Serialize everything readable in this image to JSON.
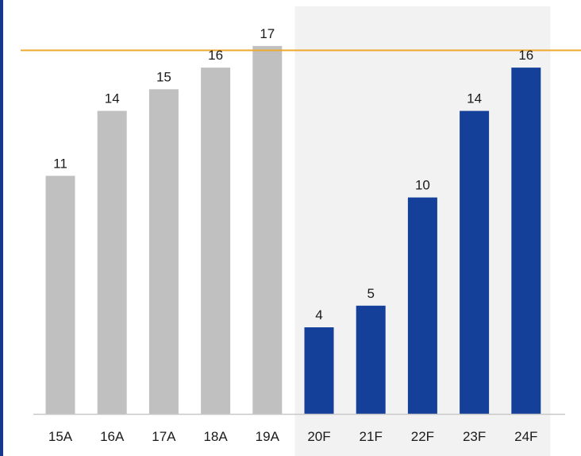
{
  "chart_data": {
    "type": "bar",
    "categories": [
      "15A",
      "16A",
      "17A",
      "18A",
      "19A",
      "20F",
      "21F",
      "22F",
      "23F",
      "24F"
    ],
    "values": [
      11,
      14,
      15,
      16,
      17,
      4,
      5,
      10,
      14,
      16
    ],
    "ylim": [
      0,
      18.5
    ],
    "reference_line": {
      "value": 16.8,
      "color": "#f0a92f"
    },
    "highlight_region": {
      "categories": [
        "20F",
        "21F",
        "22F",
        "23F",
        "24F"
      ],
      "color": "#f2f2f2"
    },
    "colors": {
      "actual": "#c0c0c0",
      "forecast": "#15409a",
      "axis": "#c8c8c8",
      "border": "#17378f"
    },
    "grid": false,
    "legend": "none"
  }
}
